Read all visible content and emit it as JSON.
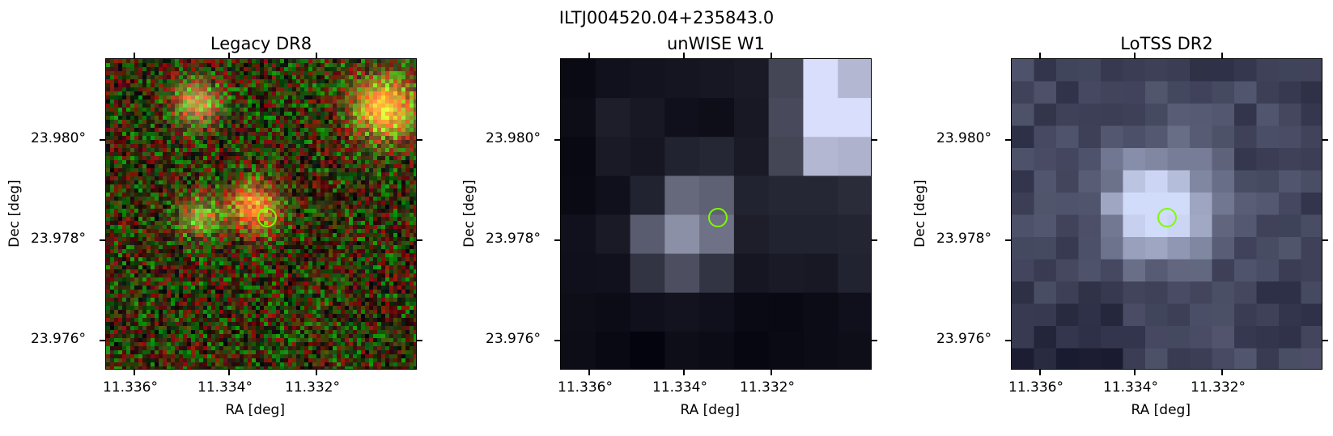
{
  "figure": {
    "source_name": "ILTJ004520.04+235843.0"
  },
  "panels": [
    {
      "title": "Legacy DR8",
      "xlabel": "RA [deg]",
      "ylabel": "Dec [deg]",
      "xticks": [
        "11.336°",
        "11.334°",
        "11.332°"
      ],
      "yticks": [
        "23.980°",
        "23.978°",
        "23.976°"
      ],
      "marker_color": "#7cfc00"
    },
    {
      "title": "unWISE W1",
      "xlabel": "RA [deg]",
      "ylabel": "Dec [deg]",
      "xticks": [
        "11.336°",
        "11.334°",
        "11.332°"
      ],
      "yticks": [
        "23.980°",
        "23.978°",
        "23.976°"
      ],
      "marker_color": "#7cfc00"
    },
    {
      "title": "LoTSS DR2",
      "xlabel": "RA [deg]",
      "ylabel": "Dec [deg]",
      "xticks": [
        "11.336°",
        "11.334°",
        "11.332°"
      ],
      "yticks": [
        "23.980°",
        "23.978°",
        "23.976°"
      ],
      "marker_color": "#7cfc00"
    }
  ]
}
